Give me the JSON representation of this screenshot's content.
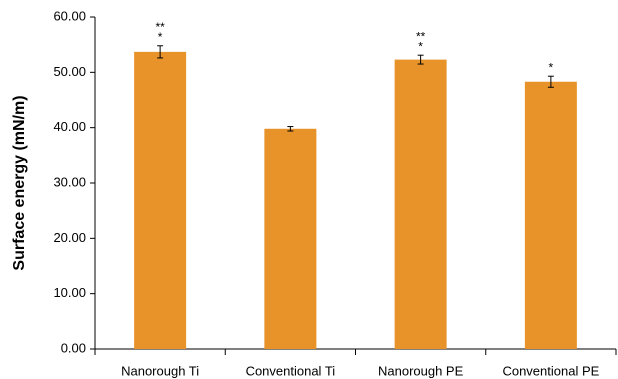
{
  "chart_data": {
    "type": "bar",
    "y_label": "Surface energy (mN/m)",
    "categories": [
      "Nanorough Ti",
      "Conventional Ti",
      "Nanorough PE",
      "Conventional PE"
    ],
    "values": [
      53.7,
      39.8,
      52.3,
      48.3
    ],
    "errors": [
      1.1,
      0.4,
      0.8,
      1.0
    ],
    "annotations": [
      [
        "**",
        "*"
      ],
      null,
      [
        "**",
        "*"
      ],
      [
        "*"
      ]
    ],
    "color": "#e8922a",
    "ylim": [
      0,
      60
    ],
    "yticks": [
      {
        "value": 0,
        "label": "0.00"
      },
      {
        "value": 10,
        "label": "10.00"
      },
      {
        "value": 20,
        "label": "20.00"
      },
      {
        "value": 30,
        "label": "30.00"
      },
      {
        "value": 40,
        "label": "40.00"
      },
      {
        "value": 50,
        "label": "50.00"
      },
      {
        "value": 60,
        "label": "60.00"
      }
    ],
    "grid": false
  }
}
